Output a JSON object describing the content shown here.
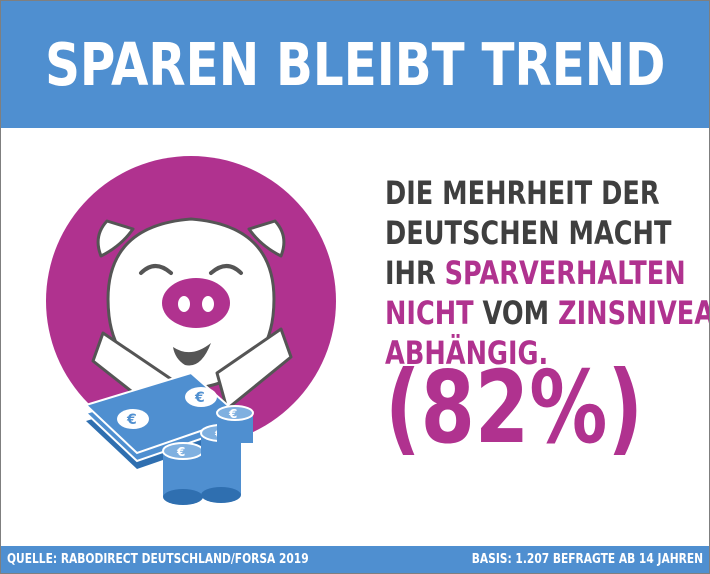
{
  "header": {
    "title": "SPAREN BLEIBT TREND"
  },
  "statement": {
    "line1": "DIE MEHRHEIT DER",
    "line2": "DEUTSCHEN MACHT",
    "line3_a": "IHR ",
    "line3_b": "SPARVERHALTEN",
    "line4_a": "NICHT",
    "line4_b": " VOM ",
    "line4_c": "ZINSNIVEAU",
    "line5": "ABHÄNGIG."
  },
  "stat": {
    "value": "(82%)"
  },
  "footer": {
    "source": "QUELLE: RABODIRECT DEUTSCHLAND/FORSA 2019",
    "basis": "BASIS: 1.207 BEFRAGTE AB 14 JAHREN"
  },
  "colors": {
    "header_blue": "#4f8fd0",
    "magenta": "#b0328f",
    "text_dark": "#3f3f3f",
    "coin_blue": "#4f8fd0"
  },
  "icons": [
    "piggy-face-icon",
    "euro-banknotes-icon",
    "euro-coins-icon"
  ]
}
